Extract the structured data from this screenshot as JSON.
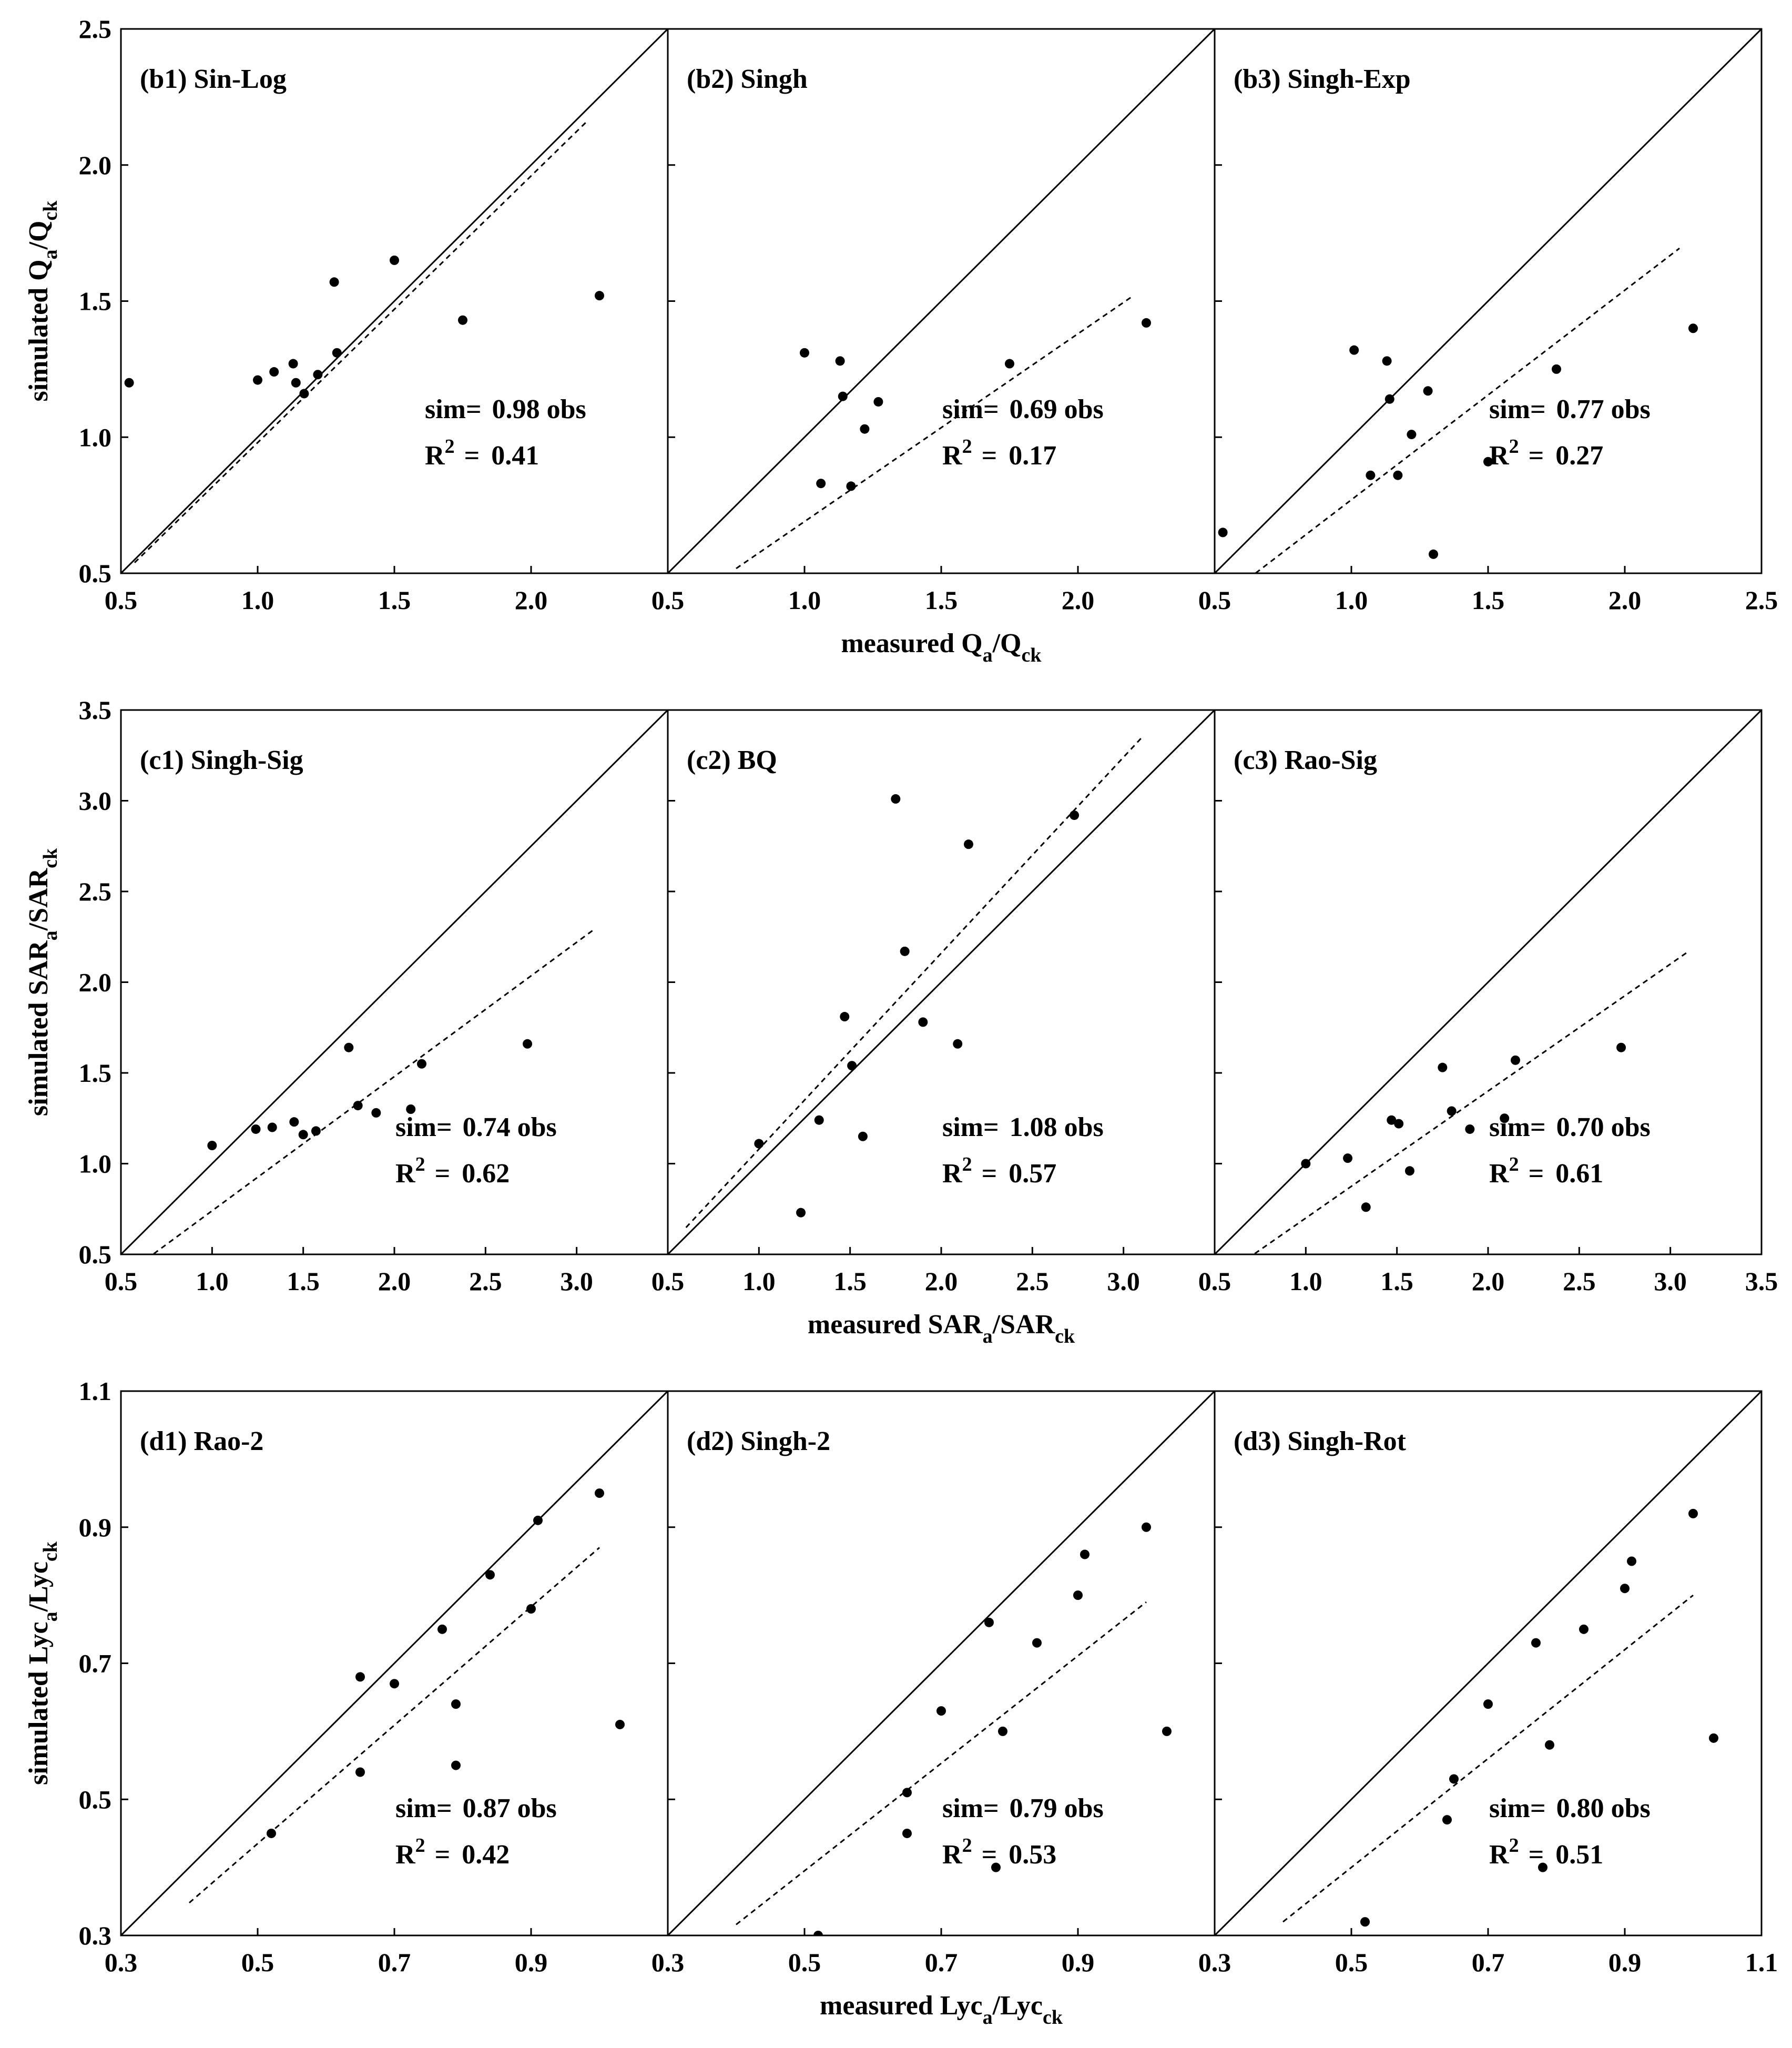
{
  "chart_data": [
    {
      "type": "scatter",
      "ylabel": {
        "main": "simulated Q",
        "sub1": "a",
        "mid": "/Q",
        "sub2": "ck"
      },
      "xlabel": {
        "main": "measured Q",
        "sub1": "a",
        "mid": "/Q",
        "sub2": "ck"
      },
      "xlim": [
        0.5,
        2.5
      ],
      "ylim": [
        0.5,
        2.5
      ],
      "xticks": [
        "0.5",
        "1.0",
        "1.5",
        "2.0"
      ],
      "xticks_last": [
        "0.5",
        "1.0",
        "1.5",
        "2.0",
        "2.5"
      ],
      "yticks": [
        "0.5",
        "1.0",
        "1.5",
        "2.0",
        "2.5"
      ],
      "panels": [
        {
          "title": "(b1) Sin-Log",
          "sim_label": "sim=",
          "slope_text": "0.98 obs",
          "r2_label": "R",
          "r2_sup": "2",
          "r2_eq": "=",
          "r2_text": "0.41",
          "slope": 0.98,
          "fit_x": [
            0.55,
            2.2
          ],
          "points": [
            [
              0.53,
              1.2
            ],
            [
              1.0,
              1.21
            ],
            [
              1.06,
              1.24
            ],
            [
              1.13,
              1.27
            ],
            [
              1.14,
              1.2
            ],
            [
              1.17,
              1.16
            ],
            [
              1.22,
              1.23
            ],
            [
              1.28,
              1.57
            ],
            [
              1.29,
              1.31
            ],
            [
              1.5,
              1.65
            ],
            [
              1.75,
              1.43
            ],
            [
              2.25,
              1.52
            ]
          ]
        },
        {
          "title": "(b2) Singh",
          "sim_label": "sim=",
          "slope_text": "0.69 obs",
          "r2_label": "R",
          "r2_sup": "2",
          "r2_eq": "=",
          "r2_text": "0.17",
          "slope": 0.69,
          "fit_x": [
            0.75,
            2.2
          ],
          "points": [
            [
              1.0,
              1.31
            ],
            [
              1.06,
              0.83
            ],
            [
              1.13,
              1.28
            ],
            [
              1.14,
              1.15
            ],
            [
              1.17,
              0.82
            ],
            [
              1.22,
              1.03
            ],
            [
              1.27,
              1.13
            ],
            [
              1.75,
              1.27
            ],
            [
              2.25,
              1.42
            ]
          ]
        },
        {
          "title": "(b3) Singh-Exp",
          "sim_label": "sim=",
          "slope_text": "0.77 obs",
          "r2_label": "R",
          "r2_sup": "2",
          "r2_eq": "=",
          "r2_text": "0.27",
          "slope": 0.77,
          "fit_x": [
            0.65,
            2.2
          ],
          "points": [
            [
              0.53,
              0.65
            ],
            [
              1.01,
              1.32
            ],
            [
              1.07,
              0.86
            ],
            [
              1.13,
              1.28
            ],
            [
              1.14,
              1.14
            ],
            [
              1.17,
              0.86
            ],
            [
              1.22,
              1.01
            ],
            [
              1.28,
              1.17
            ],
            [
              1.3,
              0.57
            ],
            [
              1.5,
              0.91
            ],
            [
              1.75,
              1.25
            ],
            [
              2.25,
              1.4
            ]
          ]
        }
      ]
    },
    {
      "type": "scatter",
      "ylabel": {
        "main": "simulated SAR",
        "sub1": "a",
        "mid": "/SAR",
        "sub2": "ck"
      },
      "xlabel": {
        "main": "measured SAR",
        "sub1": "a",
        "mid": "/SAR",
        "sub2": "ck"
      },
      "xlim": [
        0.5,
        3.5
      ],
      "ylim": [
        0.5,
        3.5
      ],
      "xticks": [
        "0.5",
        "1.0",
        "1.5",
        "2.0",
        "2.5",
        "3.0"
      ],
      "xticks_last": [
        "0.5",
        "1.0",
        "1.5",
        "2.0",
        "2.5",
        "3.0",
        "3.5"
      ],
      "yticks": [
        "0.5",
        "1.0",
        "1.5",
        "2.0",
        "2.5",
        "3.0",
        "3.5"
      ],
      "panels": [
        {
          "title": "(c1) Singh-Sig",
          "sim_label": "sim=",
          "slope_text": "0.74 obs",
          "r2_label": "R",
          "r2_sup": "2",
          "r2_eq": "=",
          "r2_text": "0.62",
          "slope": 0.74,
          "fit_x": [
            0.68,
            3.1
          ],
          "points": [
            [
              1.0,
              1.1
            ],
            [
              1.24,
              1.19
            ],
            [
              1.33,
              1.2
            ],
            [
              1.45,
              1.23
            ],
            [
              1.5,
              1.16
            ],
            [
              1.57,
              1.18
            ],
            [
              1.75,
              1.64
            ],
            [
              1.8,
              1.32
            ],
            [
              1.9,
              1.28
            ],
            [
              2.09,
              1.3
            ],
            [
              2.15,
              1.55
            ],
            [
              2.73,
              1.66
            ]
          ]
        },
        {
          "title": "(c2) BQ",
          "sim_label": "sim=",
          "slope_text": "1.08 obs",
          "r2_label": "R",
          "r2_sup": "2",
          "r2_eq": "=",
          "r2_text": "0.57",
          "slope": 1.08,
          "fit_x": [
            0.6,
            3.1
          ],
          "points": [
            [
              1.0,
              1.11
            ],
            [
              1.23,
              0.73
            ],
            [
              1.33,
              1.24
            ],
            [
              1.47,
              1.81
            ],
            [
              1.51,
              1.54
            ],
            [
              1.57,
              1.15
            ],
            [
              1.75,
              3.01
            ],
            [
              1.8,
              2.17
            ],
            [
              1.9,
              1.78
            ],
            [
              2.09,
              1.66
            ],
            [
              2.15,
              2.76
            ],
            [
              2.73,
              2.92
            ]
          ]
        },
        {
          "title": "(c3) Rao-Sig",
          "sim_label": "sim=",
          "slope_text": "0.70 obs",
          "r2_label": "R",
          "r2_sup": "2",
          "r2_eq": "=",
          "r2_text": "0.61",
          "slope": 0.7,
          "fit_x": [
            0.72,
            3.1
          ],
          "points": [
            [
              1.0,
              1.0
            ],
            [
              1.23,
              1.03
            ],
            [
              1.33,
              0.76
            ],
            [
              1.47,
              1.24
            ],
            [
              1.51,
              1.22
            ],
            [
              1.57,
              0.96
            ],
            [
              1.75,
              1.53
            ],
            [
              1.8,
              1.29
            ],
            [
              1.9,
              1.19
            ],
            [
              2.09,
              1.25
            ],
            [
              2.15,
              1.57
            ],
            [
              2.73,
              1.64
            ]
          ]
        }
      ]
    },
    {
      "type": "scatter",
      "ylabel": {
        "main": "simulated Lyc",
        "sub1": "a",
        "mid": "/Lyc",
        "sub2": "ck"
      },
      "xlabel": {
        "main": "measured Lyc",
        "sub1": "a",
        "mid": "/Lyc",
        "sub2": "ck"
      },
      "xlim": [
        0.3,
        1.1
      ],
      "ylim": [
        0.3,
        1.1
      ],
      "xticks": [
        "0.3",
        "0.5",
        "0.7",
        "0.9"
      ],
      "xticks_last": [
        "0.3",
        "0.5",
        "0.7",
        "0.9",
        "1.1"
      ],
      "yticks": [
        "0.3",
        "0.5",
        "0.7",
        "0.9",
        "1.1"
      ],
      "panels": [
        {
          "title": "(d1) Rao-2",
          "sim_label": "sim=",
          "slope_text": "0.87 obs",
          "r2_label": "R",
          "r2_sup": "2",
          "r2_eq": "=",
          "r2_text": "0.42",
          "slope": 0.87,
          "fit_x": [
            0.4,
            1.0
          ],
          "points": [
            [
              0.52,
              0.45
            ],
            [
              0.65,
              0.68
            ],
            [
              0.65,
              0.54
            ],
            [
              0.7,
              0.67
            ],
            [
              0.77,
              0.75
            ],
            [
              0.79,
              0.55
            ],
            [
              0.79,
              0.64
            ],
            [
              0.84,
              0.83
            ],
            [
              0.9,
              0.78
            ],
            [
              0.91,
              0.91
            ],
            [
              1.0,
              0.95
            ],
            [
              1.03,
              0.61
            ]
          ]
        },
        {
          "title": "(d2) Singh-2",
          "sim_label": "sim=",
          "slope_text": "0.79 obs",
          "r2_label": "R",
          "r2_sup": "2",
          "r2_eq": "=",
          "r2_text": "0.53",
          "slope": 0.79,
          "fit_x": [
            0.4,
            1.0
          ],
          "points": [
            [
              0.52,
              0.3
            ],
            [
              0.65,
              0.45
            ],
            [
              0.65,
              0.51
            ],
            [
              0.7,
              0.63
            ],
            [
              0.77,
              0.76
            ],
            [
              0.78,
              0.4
            ],
            [
              0.79,
              0.6
            ],
            [
              0.84,
              0.73
            ],
            [
              0.9,
              0.8
            ],
            [
              0.91,
              0.86
            ],
            [
              1.0,
              0.9
            ],
            [
              1.03,
              0.6
            ]
          ]
        },
        {
          "title": "(d3) Singh-Rot",
          "sim_label": "sim=",
          "slope_text": "0.80 obs",
          "r2_label": "R",
          "r2_sup": "2",
          "r2_eq": "=",
          "r2_text": "0.51",
          "slope": 0.8,
          "fit_x": [
            0.4,
            1.0
          ],
          "points": [
            [
              0.52,
              0.32
            ],
            [
              0.64,
              0.47
            ],
            [
              0.65,
              0.53
            ],
            [
              0.7,
              0.64
            ],
            [
              0.77,
              0.73
            ],
            [
              0.78,
              0.4
            ],
            [
              0.79,
              0.58
            ],
            [
              0.84,
              0.75
            ],
            [
              0.9,
              0.81
            ],
            [
              0.91,
              0.85
            ],
            [
              1.0,
              0.92
            ],
            [
              1.03,
              0.59
            ]
          ]
        }
      ]
    }
  ]
}
